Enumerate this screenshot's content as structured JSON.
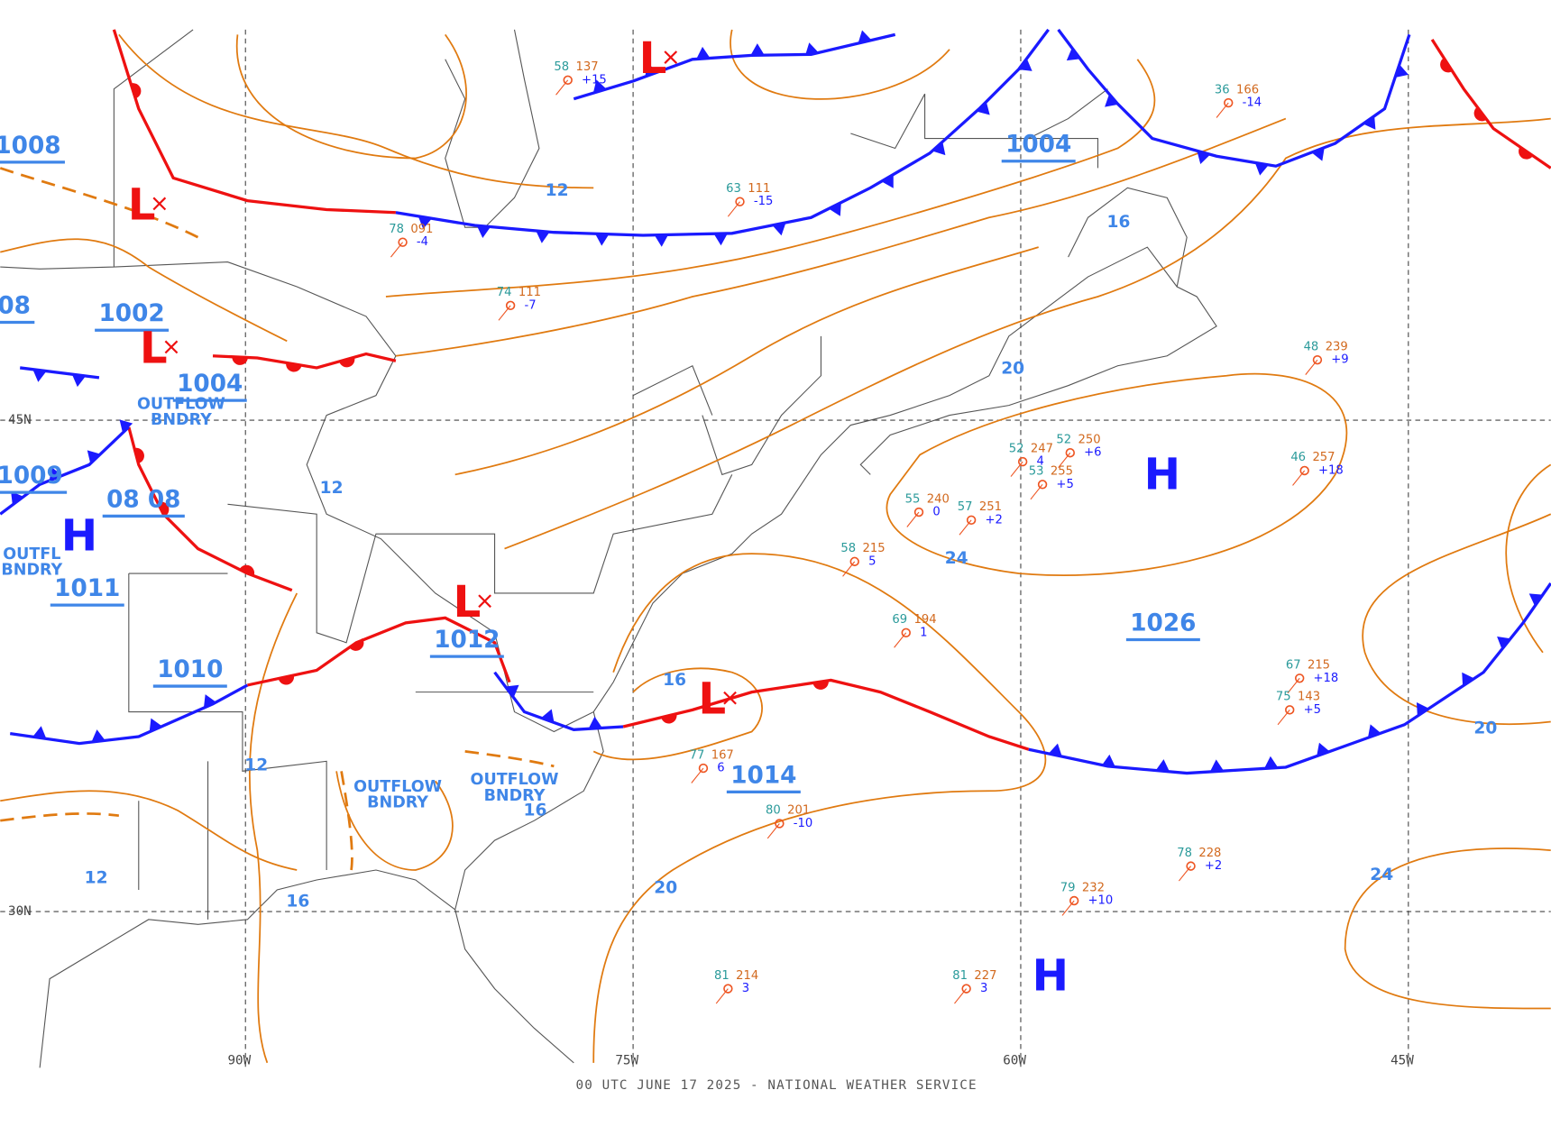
{
  "map": {
    "footer": "00 UTC JUNE 17 2025 - NATIONAL WEATHER SERVICE",
    "latitudes": [
      "45N",
      "30N"
    ],
    "longitudes": [
      "90W",
      "75W",
      "60W",
      "45W"
    ],
    "isobar_labels": [
      "1008",
      "08",
      "1002",
      "1004",
      "1009",
      "08 08",
      "1011",
      "1010",
      "1012",
      "1014",
      "1004",
      "1026"
    ],
    "contour_values": [
      "12",
      "16",
      "20",
      "12",
      "24",
      "16",
      "20",
      "12",
      "16",
      "12",
      "24",
      "20",
      "16"
    ],
    "highs": [
      "H",
      "H",
      "H"
    ],
    "lows": [
      "L",
      "L",
      "L",
      "L",
      "L"
    ],
    "boundaries": [
      [
        "OUTFLOW",
        "BNDRY"
      ],
      [
        "OUTFL",
        "BNDRY"
      ],
      [
        "OUTFLOW",
        "BNDRY"
      ],
      [
        "OUTFLOW",
        "BNDRY"
      ]
    ],
    "stations": [
      {
        "temp": "52",
        "pressure": "250",
        "tendency": "+6"
      },
      {
        "temp": "52",
        "pressure": "247",
        "tendency": "4"
      },
      {
        "temp": "53",
        "pressure": "255",
        "tendency": "+5"
      },
      {
        "temp": "46",
        "pressure": "257",
        "tendency": "+18"
      },
      {
        "temp": "55",
        "pressure": "240",
        "tendency": "0"
      },
      {
        "temp": "57",
        "pressure": "251",
        "tendency": "+2"
      },
      {
        "temp": "58",
        "pressure": "215",
        "tendency": "5"
      },
      {
        "temp": "69",
        "pressure": "194",
        "tendency": "1"
      },
      {
        "temp": "67",
        "pressure": "215",
        "tendency": "+18"
      },
      {
        "temp": "75",
        "pressure": "143",
        "tendency": "+5"
      },
      {
        "temp": "78",
        "pressure": "228",
        "tendency": "+2"
      },
      {
        "temp": "79",
        "pressure": "232",
        "tendency": "+10"
      },
      {
        "temp": "81",
        "pressure": "214",
        "tendency": "3"
      },
      {
        "temp": "81",
        "pressure": "227",
        "tendency": "3"
      },
      {
        "temp": "80",
        "pressure": "201",
        "tendency": "-10"
      },
      {
        "temp": "77",
        "pressure": "167",
        "tendency": "6"
      },
      {
        "temp": "48",
        "pressure": "239",
        "tendency": "+9"
      },
      {
        "temp": "36",
        "pressure": "166",
        "tendency": "-14"
      },
      {
        "temp": "58",
        "pressure": "137",
        "tendency": "+15"
      },
      {
        "temp": "63",
        "pressure": "111",
        "tendency": "-15"
      },
      {
        "temp": "78",
        "pressure": "091",
        "tendency": "-4"
      },
      {
        "temp": "74",
        "pressure": "111",
        "tendency": "-7"
      }
    ]
  }
}
